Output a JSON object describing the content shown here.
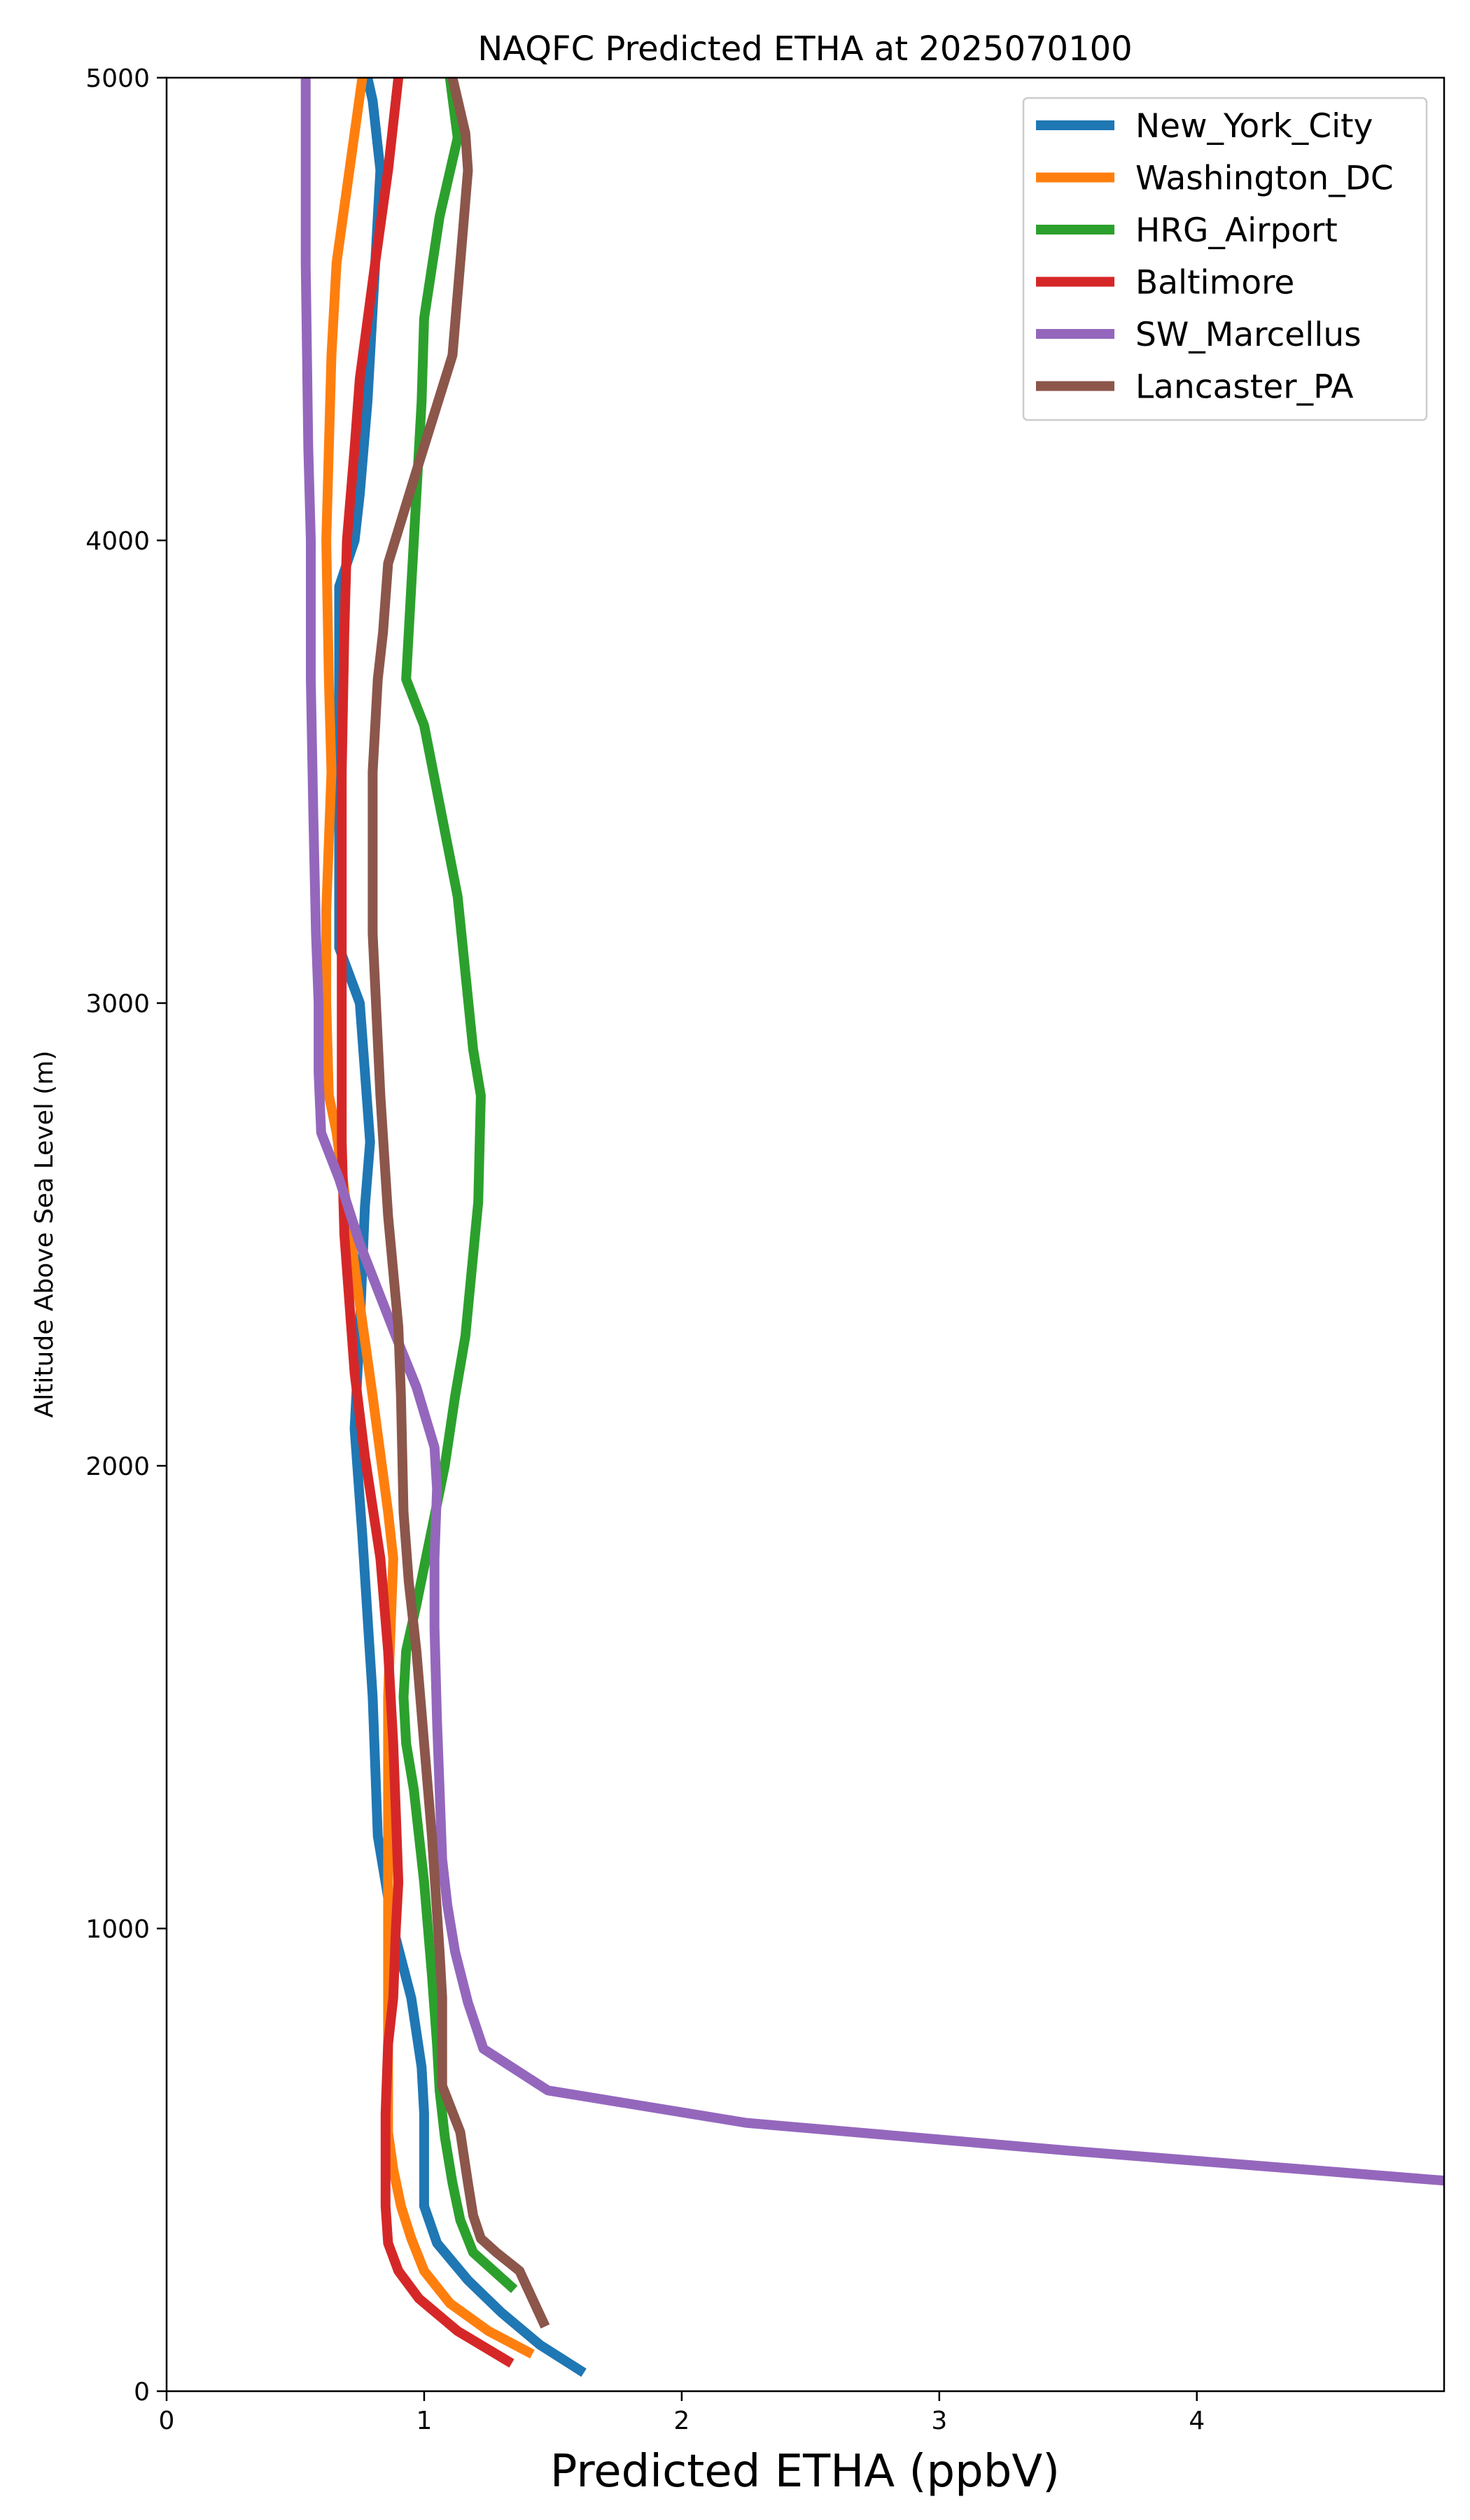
{
  "chart_data": {
    "type": "line",
    "title": "NAQFC Predicted ETHA at 2025070100",
    "xlabel": "Predicted ETHA (ppbV)",
    "ylabel": "Altitude Above Sea Level (m)",
    "xlim": [
      0,
      4.96
    ],
    "ylim": [
      0,
      5000
    ],
    "xticks": [
      0,
      1,
      2,
      3,
      4
    ],
    "yticks": [
      0,
      1000,
      2000,
      3000,
      4000,
      5000
    ],
    "grid": false,
    "legend_position": "top-right",
    "series": [
      {
        "name": "New_York_City",
        "color": "#1f77b4",
        "x": [
          1.62,
          1.45,
          1.3,
          1.17,
          1.05,
          1.0,
          1.0,
          1.0,
          0.99,
          0.95,
          0.88,
          0.82,
          0.8,
          0.76,
          0.73,
          0.75,
          0.77,
          0.79,
          0.75,
          0.67,
          0.67,
          0.73,
          0.75,
          0.78,
          0.8,
          0.83,
          0.8,
          0.78
        ],
        "y": [
          40,
          100,
          170,
          240,
          320,
          400,
          500,
          600,
          700,
          850,
          1000,
          1200,
          1500,
          1850,
          2080,
          2300,
          2560,
          2700,
          3000,
          3120,
          3900,
          4000,
          4100,
          4300,
          4500,
          4800,
          4950,
          5000
        ]
      },
      {
        "name": "Washington_DC",
        "color": "#ff7f0e",
        "x": [
          1.42,
          1.25,
          1.1,
          1.0,
          0.95,
          0.91,
          0.88,
          0.86,
          0.86,
          0.86,
          0.86,
          0.86,
          0.86,
          0.86,
          0.87,
          0.88,
          0.86,
          0.8,
          0.73,
          0.66,
          0.63,
          0.62,
          0.62,
          0.64,
          0.63,
          0.62,
          0.63,
          0.64,
          0.66,
          0.76
        ],
        "y": [
          80,
          130,
          190,
          260,
          330,
          400,
          480,
          560,
          600,
          800,
          1000,
          1200,
          1350,
          1500,
          1650,
          1800,
          1900,
          2150,
          2430,
          2720,
          2800,
          3000,
          3200,
          3500,
          3700,
          4000,
          4200,
          4400,
          4600,
          5000
        ]
      },
      {
        "name": "HRG_Airport",
        "color": "#2ca02c",
        "x": [
          1.35,
          1.19,
          1.14,
          1.11,
          1.08,
          1.06,
          1.05,
          1.03,
          1.0,
          0.96,
          0.93,
          0.92,
          0.93,
          0.97,
          1.08,
          1.12,
          1.16,
          1.21,
          1.22,
          1.19,
          1.13,
          1.0,
          0.93,
          0.95,
          0.97,
          0.99,
          1.0,
          1.06,
          1.13,
          1.1
        ],
        "y": [
          220,
          300,
          370,
          450,
          550,
          650,
          750,
          900,
          1100,
          1300,
          1400,
          1500,
          1600,
          1700,
          2000,
          2150,
          2280,
          2570,
          2800,
          2900,
          3230,
          3600,
          3700,
          3900,
          4100,
          4300,
          4480,
          4700,
          4870,
          5000
        ]
      },
      {
        "name": "Baltimore",
        "color": "#d62728",
        "x": [
          1.34,
          1.13,
          0.98,
          0.9,
          0.86,
          0.85,
          0.85,
          0.85,
          0.86,
          0.88,
          0.89,
          0.9,
          0.89,
          0.88,
          0.86,
          0.83,
          0.77,
          0.73,
          0.69,
          0.68,
          0.68,
          0.68,
          0.68,
          0.69,
          0.7,
          0.73,
          0.75,
          0.81,
          0.86,
          0.9
        ],
        "y": [
          60,
          130,
          200,
          260,
          320,
          400,
          500,
          600,
          750,
          850,
          1000,
          1100,
          1250,
          1400,
          1600,
          1800,
          2020,
          2200,
          2500,
          2700,
          3000,
          3200,
          3500,
          3800,
          4000,
          4200,
          4350,
          4600,
          4800,
          5000
        ]
      },
      {
        "name": "SW_Marcellus",
        "color": "#9467bd",
        "x": [
          4.96,
          3.5,
          2.25,
          1.48,
          1.23,
          1.17,
          1.12,
          1.09,
          1.07,
          1.06,
          1.05,
          1.04,
          1.04,
          1.05,
          1.04,
          0.97,
          0.89,
          0.75,
          0.67,
          0.6,
          0.59,
          0.59,
          0.58,
          0.57,
          0.56,
          0.56,
          0.55,
          0.54,
          0.54
        ],
        "y": [
          455,
          520,
          580,
          650,
          740,
          840,
          950,
          1050,
          1150,
          1300,
          1450,
          1650,
          1800,
          1950,
          2040,
          2170,
          2280,
          2480,
          2620,
          2720,
          2850,
          3000,
          3150,
          3400,
          3700,
          4000,
          4200,
          4600,
          5000
        ]
      },
      {
        "name": "Lancaster_PA",
        "color": "#8c564b",
        "x": [
          1.47,
          1.42,
          1.37,
          1.28,
          1.22,
          1.19,
          1.17,
          1.14,
          1.07,
          1.07,
          1.07,
          1.06,
          1.03,
          1.0,
          0.97,
          0.94,
          0.92,
          0.91,
          0.9,
          0.86,
          0.83,
          0.8,
          0.8,
          0.82,
          0.84,
          0.86,
          0.97,
          1.11,
          1.14,
          1.17,
          1.16,
          1.11
        ],
        "y": [
          140,
          200,
          260,
          300,
          330,
          380,
          450,
          560,
          660,
          750,
          850,
          950,
          1200,
          1400,
          1600,
          1750,
          1900,
          2150,
          2300,
          2540,
          2800,
          3150,
          3500,
          3700,
          3800,
          3950,
          4150,
          4400,
          4600,
          4800,
          4880,
          5000
        ]
      }
    ]
  }
}
